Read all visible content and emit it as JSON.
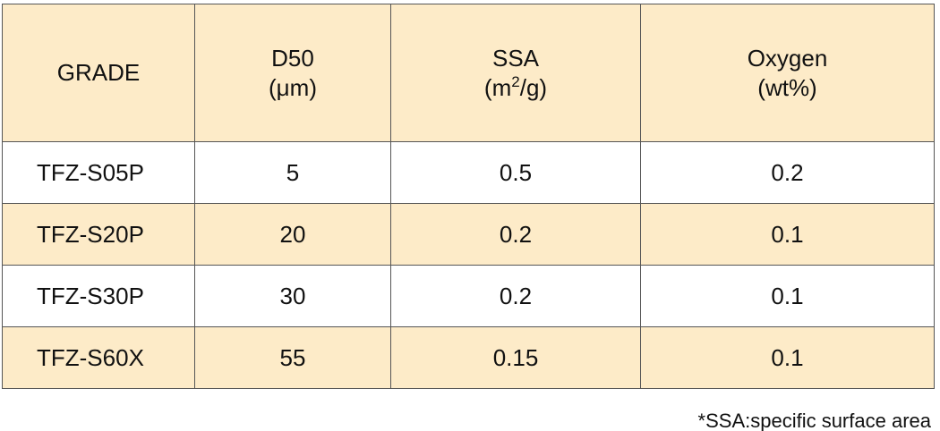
{
  "table": {
    "header": [
      {
        "line1": "GRADE"
      },
      {
        "line1": "D50",
        "line2": "(μm)"
      },
      {
        "line1": "SSA",
        "line2": "(m",
        "sup": "2",
        "line2_end": "/g)"
      },
      {
        "line1": "Oxygen",
        "line2": "(wt%)"
      }
    ],
    "rows": [
      [
        "TFZ-S05P",
        5,
        0.5,
        0.2
      ],
      [
        "TFZ-S20P",
        20,
        0.2,
        0.1
      ],
      [
        "TFZ-S30P",
        30,
        0.2,
        0.1
      ],
      [
        "TFZ-S60X",
        55,
        0.15,
        0.1
      ]
    ]
  },
  "footnote": "*SSA:specific surface area"
}
